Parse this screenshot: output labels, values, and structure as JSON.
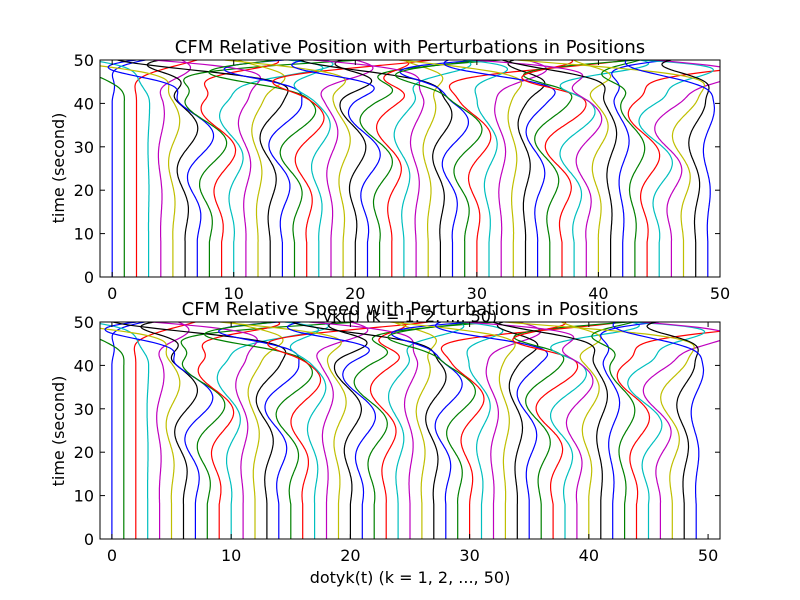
{
  "palette": [
    "#0000ff",
    "#008000",
    "#ff0000",
    "#00bfbf",
    "#bf00bf",
    "#bfbf00",
    "#000000"
  ],
  "chart_data": [
    {
      "type": "line",
      "title": "CFM Relative Position with Perturbations in Positions",
      "xlabel": "yk(t) (k = 1, 2, ..., 50)",
      "ylabel": "time (second)",
      "xlim": [
        -1,
        50
      ],
      "ylim": [
        0,
        50
      ],
      "xticks": [
        "0",
        "10",
        "20",
        "30",
        "40",
        "50"
      ],
      "yticks": [
        "0",
        "10",
        "20",
        "30",
        "40",
        "50"
      ],
      "grid": false,
      "series_count": 50,
      "series_base_x": [
        0,
        1,
        2,
        3,
        4,
        5,
        6,
        7,
        8,
        9,
        10,
        11,
        12,
        13,
        14,
        15,
        16,
        17,
        18,
        19,
        20,
        21,
        22,
        23,
        24,
        25,
        26,
        27,
        28,
        29,
        30,
        31,
        32,
        33,
        34,
        35,
        36,
        37,
        38,
        39,
        40,
        41,
        42,
        43,
        44,
        45,
        46,
        47,
        48,
        49
      ],
      "series_wiggle": [
        0,
        0,
        0,
        0.1,
        0.4,
        0.8,
        1.6,
        2.2,
        2.5,
        2.2,
        1.6,
        0.9,
        0.8,
        1.4,
        2.0,
        2.3,
        2.0,
        1.4,
        0.9,
        1.0,
        1.6,
        2.1,
        2.3,
        1.9,
        1.3,
        0.8,
        0.8,
        1.3,
        1.9,
        2.2,
        1.9,
        1.2,
        0.7,
        0.6,
        0.9,
        1.5,
        2.1,
        2.5,
        2.3,
        1.8,
        1.2,
        0.8,
        0.9,
        1.5,
        2.1,
        2.4,
        2.1,
        1.5,
        1.0,
        0.7
      ]
    },
    {
      "type": "line",
      "title": "CFM Relative Speed with Perturbations in Positions",
      "xlabel": "dotyk(t) (k = 1, 2, ..., 50)",
      "ylabel": "time (second)",
      "xlim": [
        -1,
        51
      ],
      "ylim": [
        0,
        50
      ],
      "xticks": [
        "0",
        "10",
        "20",
        "30",
        "40",
        "50"
      ],
      "yticks": [
        "0",
        "10",
        "20",
        "30",
        "40",
        "50"
      ],
      "grid": false,
      "series_count": 50,
      "series_base_x": [
        0,
        1,
        2,
        3,
        4,
        5,
        6,
        7,
        8,
        9,
        10,
        11,
        12,
        13,
        14,
        15,
        16,
        17,
        18,
        19,
        20,
        21,
        22,
        23,
        24,
        25,
        26,
        27,
        28,
        29,
        30,
        31,
        32,
        33,
        34,
        35,
        36,
        37,
        38,
        39,
        40,
        41,
        42,
        43,
        44,
        45,
        46,
        47,
        48,
        49
      ],
      "series_wiggle": [
        0,
        0,
        0,
        0.1,
        0.5,
        1.0,
        1.8,
        2.4,
        2.6,
        2.3,
        1.6,
        0.9,
        0.9,
        1.5,
        2.1,
        2.4,
        2.1,
        1.4,
        0.9,
        1.1,
        1.7,
        2.2,
        2.4,
        2.0,
        1.3,
        0.8,
        0.9,
        1.4,
        2.0,
        2.3,
        2.0,
        1.3,
        0.8,
        0.7,
        1.0,
        1.6,
        2.2,
        2.6,
        2.4,
        1.9,
        1.3,
        0.9,
        1.0,
        1.6,
        2.2,
        2.5,
        2.2,
        1.6,
        1.1,
        0.8
      ]
    }
  ]
}
